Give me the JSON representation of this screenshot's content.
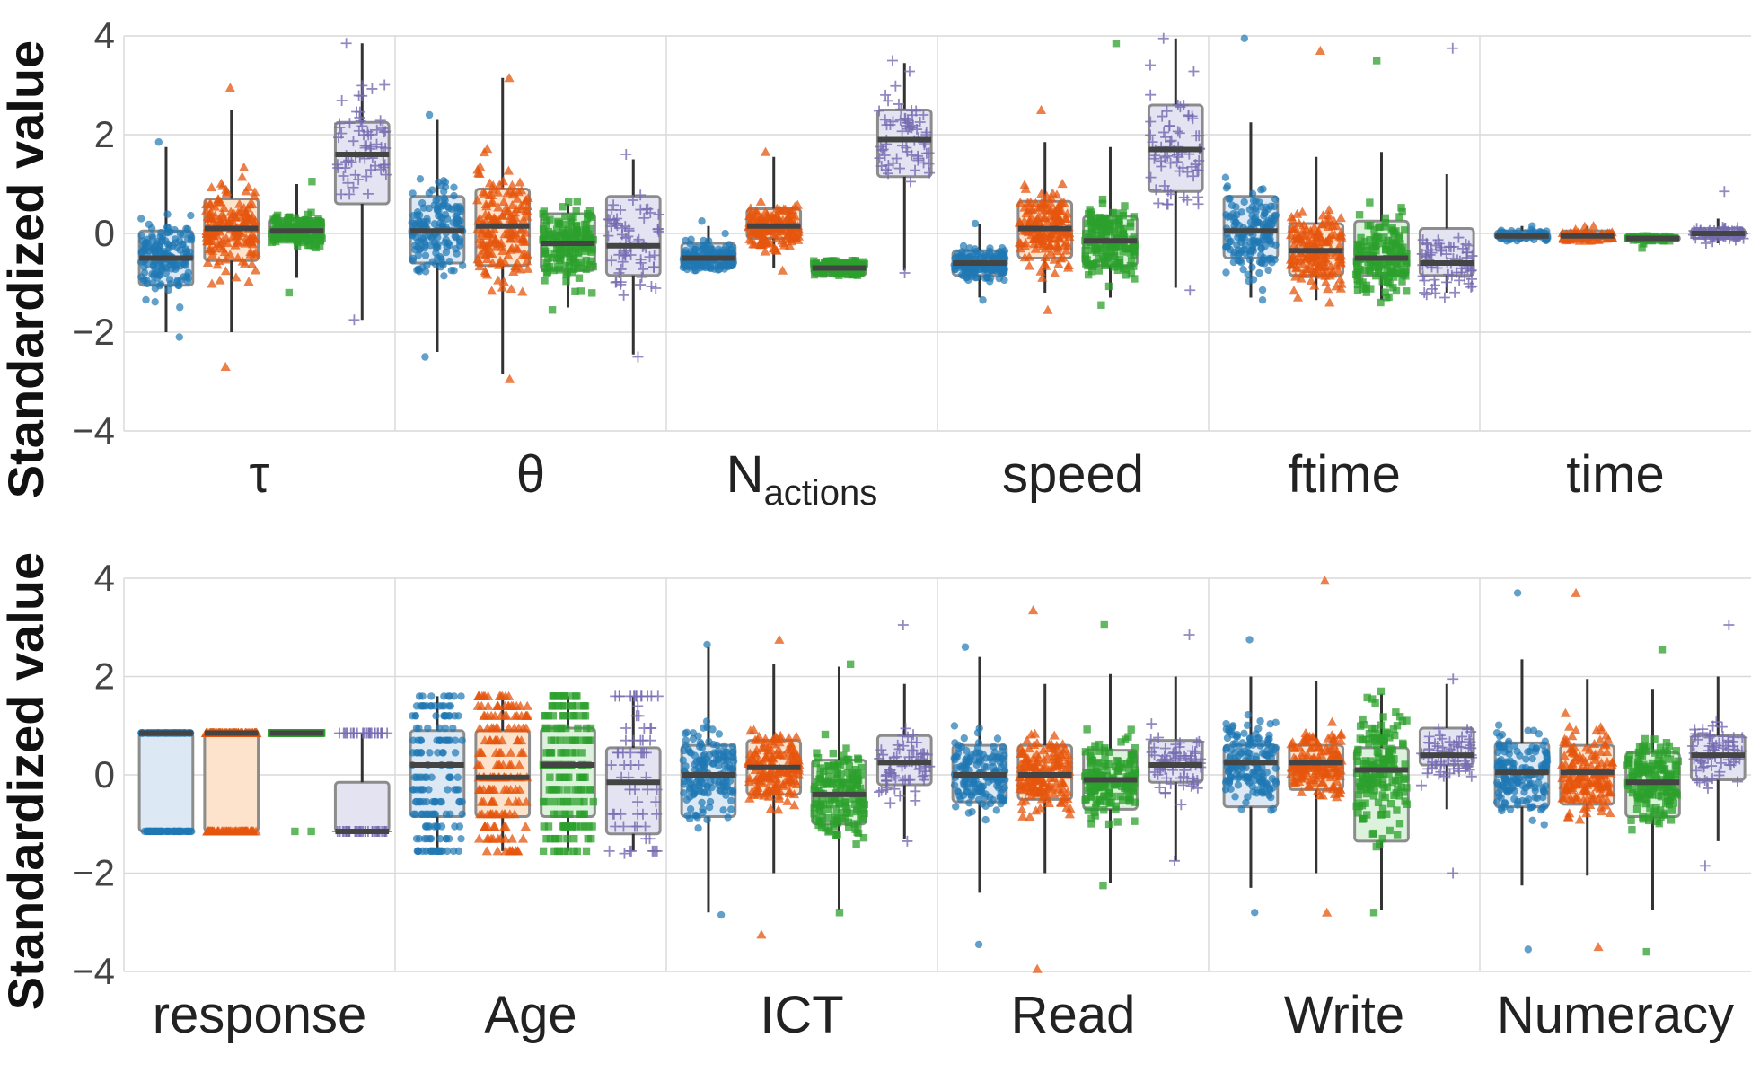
{
  "chart_data": [
    {
      "type": "box",
      "ylabel": "Standardized value",
      "ylim": [
        -4,
        4
      ],
      "yticks": [
        "−4",
        "−2",
        "0",
        "2",
        "4"
      ],
      "ytick_values": [
        -4,
        -2,
        0,
        2,
        4
      ],
      "grid": true,
      "categories": [
        {
          "main": "τ",
          "sub": ""
        },
        {
          "main": "θ",
          "sub": ""
        },
        {
          "main": "N",
          "sub": "actions"
        },
        {
          "main": "speed",
          "sub": ""
        },
        {
          "main": "ftime",
          "sub": ""
        },
        {
          "main": "time",
          "sub": ""
        }
      ],
      "groups": [
        [
          {
            "q1": -1.05,
            "median": -0.5,
            "q3": 0.05,
            "wlo": -2.0,
            "whi": 1.75,
            "lo": -2.1,
            "hi": 1.85
          },
          {
            "q1": -0.55,
            "median": 0.1,
            "q3": 0.7,
            "wlo": -2.0,
            "whi": 2.5,
            "lo": -2.7,
            "hi": 2.95
          },
          {
            "q1": -0.15,
            "median": 0.05,
            "q3": 0.3,
            "wlo": -0.9,
            "whi": 1.0,
            "lo": -1.2,
            "hi": 1.05
          },
          {
            "q1": 0.6,
            "median": 1.6,
            "q3": 2.25,
            "wlo": -1.75,
            "whi": 3.85,
            "lo": -1.75,
            "hi": 3.85
          }
        ],
        [
          {
            "q1": -0.6,
            "median": 0.05,
            "q3": 0.75,
            "wlo": -2.4,
            "whi": 2.3,
            "lo": -2.5,
            "hi": 2.4
          },
          {
            "q1": -0.65,
            "median": 0.15,
            "q3": 0.9,
            "wlo": -2.85,
            "whi": 3.15,
            "lo": -2.95,
            "hi": 3.15
          },
          {
            "q1": -0.75,
            "median": -0.2,
            "q3": 0.4,
            "wlo": -1.5,
            "whi": 0.6,
            "lo": -1.55,
            "hi": 0.65
          },
          {
            "q1": -0.85,
            "median": -0.25,
            "q3": 0.75,
            "wlo": -2.45,
            "whi": 1.5,
            "lo": -2.5,
            "hi": 1.6
          }
        ],
        [
          {
            "q1": -0.7,
            "median": -0.5,
            "q3": -0.2,
            "wlo": -0.75,
            "whi": 0.15,
            "lo": -0.75,
            "hi": 0.25
          },
          {
            "q1": -0.1,
            "median": 0.15,
            "q3": 0.5,
            "wlo": -0.7,
            "whi": 1.55,
            "lo": -0.75,
            "hi": 1.65
          },
          {
            "q1": -0.85,
            "median": -0.7,
            "q3": -0.6,
            "wlo": -0.85,
            "whi": -0.55,
            "lo": -0.85,
            "hi": -0.55
          },
          {
            "q1": 1.15,
            "median": 1.9,
            "q3": 2.5,
            "wlo": -0.75,
            "whi": 3.45,
            "lo": -0.8,
            "hi": 3.5
          }
        ],
        [
          {
            "q1": -0.85,
            "median": -0.6,
            "q3": -0.35,
            "wlo": -1.3,
            "whi": 0.2,
            "lo": -1.35,
            "hi": 0.2
          },
          {
            "q1": -0.5,
            "median": 0.1,
            "q3": 0.65,
            "wlo": -1.2,
            "whi": 1.85,
            "lo": -1.55,
            "hi": 2.5
          },
          {
            "q1": -0.65,
            "median": -0.15,
            "q3": 0.35,
            "wlo": -1.3,
            "whi": 1.75,
            "lo": -1.45,
            "hi": 3.85
          },
          {
            "q1": 0.85,
            "median": 1.7,
            "q3": 2.6,
            "wlo": -1.1,
            "whi": 3.95,
            "lo": -1.15,
            "hi": 3.95
          }
        ],
        [
          {
            "q1": -0.5,
            "median": 0.05,
            "q3": 0.75,
            "wlo": -1.3,
            "whi": 2.25,
            "lo": -1.35,
            "hi": 3.95
          },
          {
            "q1": -0.85,
            "median": -0.35,
            "q3": 0.2,
            "wlo": -1.35,
            "whi": 1.55,
            "lo": -1.4,
            "hi": 3.7
          },
          {
            "q1": -0.85,
            "median": -0.5,
            "q3": 0.25,
            "wlo": -1.35,
            "whi": 1.65,
            "lo": -1.4,
            "hi": 3.5
          },
          {
            "q1": -0.85,
            "median": -0.6,
            "q3": 0.1,
            "wlo": -1.2,
            "whi": 1.2,
            "lo": -1.3,
            "hi": 3.75
          }
        ],
        [
          {
            "q1": -0.1,
            "median": -0.05,
            "q3": 0.05,
            "wlo": -0.15,
            "whi": 0.15,
            "lo": -0.15,
            "hi": 0.15
          },
          {
            "q1": -0.1,
            "median": -0.05,
            "q3": 0.05,
            "wlo": -0.15,
            "whi": 0.15,
            "lo": -0.15,
            "hi": 0.15
          },
          {
            "q1": -0.15,
            "median": -0.1,
            "q3": -0.05,
            "wlo": -0.15,
            "whi": -0.05,
            "lo": -0.15,
            "hi": -0.05
          },
          {
            "q1": -0.1,
            "median": 0.0,
            "q3": 0.1,
            "wlo": -0.2,
            "whi": 0.3,
            "lo": -0.2,
            "hi": 0.85
          }
        ]
      ]
    },
    {
      "type": "box",
      "ylabel": "Standardized value",
      "ylim": [
        -4,
        4
      ],
      "yticks": [
        "−4",
        "−2",
        "0",
        "2",
        "4"
      ],
      "ytick_values": [
        -4,
        -2,
        0,
        2,
        4
      ],
      "grid": true,
      "categories": [
        {
          "main": "response",
          "sub": ""
        },
        {
          "main": "Age",
          "sub": ""
        },
        {
          "main": "ICT",
          "sub": ""
        },
        {
          "main": "Read",
          "sub": ""
        },
        {
          "main": "Write",
          "sub": ""
        },
        {
          "main": "Numeracy",
          "sub": ""
        }
      ],
      "groups": [
        [
          {
            "q1": -1.15,
            "median": 0.85,
            "q3": 0.85,
            "wlo": -1.15,
            "whi": 0.85,
            "lo": -1.15,
            "hi": 0.85,
            "discrete": [
              -1.15,
              0.85
            ]
          },
          {
            "q1": -1.15,
            "median": 0.85,
            "q3": 0.85,
            "wlo": -1.15,
            "whi": 0.85,
            "lo": -1.15,
            "hi": 0.85,
            "discrete": [
              -1.15,
              0.85
            ]
          },
          {
            "q1": 0.85,
            "median": 0.85,
            "q3": 0.85,
            "wlo": 0.85,
            "whi": 0.85,
            "lo": -1.15,
            "hi": 0.85,
            "discrete": [
              -1.15,
              0.85
            ]
          },
          {
            "q1": -1.15,
            "median": -1.15,
            "q3": -0.15,
            "wlo": -1.15,
            "whi": 0.85,
            "lo": -1.15,
            "hi": 0.85,
            "discrete": [
              -1.15,
              0.85
            ]
          }
        ],
        [
          {
            "q1": -0.85,
            "median": 0.2,
            "q3": 0.9,
            "wlo": -1.55,
            "whi": 1.6,
            "lo": -1.55,
            "hi": 1.6,
            "discrete": [
              -1.55,
              -1.3,
              -1.05,
              -0.8,
              -0.55,
              -0.3,
              -0.05,
              0.2,
              0.45,
              0.7,
              0.95,
              1.2,
              1.4,
              1.6
            ]
          },
          {
            "q1": -0.85,
            "median": -0.05,
            "q3": 0.9,
            "wlo": -1.55,
            "whi": 1.6,
            "lo": -1.55,
            "hi": 1.6,
            "discrete": [
              -1.55,
              -1.3,
              -1.05,
              -0.8,
              -0.55,
              -0.3,
              -0.05,
              0.2,
              0.45,
              0.7,
              0.95,
              1.2,
              1.4,
              1.6
            ]
          },
          {
            "q1": -0.85,
            "median": 0.2,
            "q3": 0.95,
            "wlo": -1.55,
            "whi": 1.6,
            "lo": -1.55,
            "hi": 1.6,
            "discrete": [
              -1.55,
              -1.3,
              -1.05,
              -0.8,
              -0.55,
              -0.3,
              -0.05,
              0.2,
              0.45,
              0.7,
              0.95,
              1.2,
              1.4,
              1.6
            ]
          },
          {
            "q1": -1.2,
            "median": -0.15,
            "q3": 0.55,
            "wlo": -1.55,
            "whi": 1.6,
            "lo": -1.6,
            "hi": 1.6,
            "discrete": [
              -1.55,
              -1.3,
              -1.05,
              -0.8,
              -0.55,
              -0.3,
              -0.05,
              0.2,
              0.45,
              0.7,
              0.95,
              1.2,
              1.4,
              1.6
            ]
          }
        ],
        [
          {
            "q1": -0.85,
            "median": 0.0,
            "q3": 0.6,
            "wlo": -2.8,
            "whi": 2.6,
            "lo": -2.85,
            "hi": 2.65
          },
          {
            "q1": -0.4,
            "median": 0.15,
            "q3": 0.7,
            "wlo": -2.0,
            "whi": 2.25,
            "lo": -3.25,
            "hi": 2.75
          },
          {
            "q1": -1.0,
            "median": -0.4,
            "q3": 0.3,
            "wlo": -2.75,
            "whi": 2.2,
            "lo": -2.8,
            "hi": 2.25
          },
          {
            "q1": -0.2,
            "median": 0.25,
            "q3": 0.8,
            "wlo": -1.3,
            "whi": 1.85,
            "lo": -1.35,
            "hi": 3.05
          }
        ],
        [
          {
            "q1": -0.55,
            "median": 0.0,
            "q3": 0.6,
            "wlo": -2.4,
            "whi": 2.4,
            "lo": -3.45,
            "hi": 2.6
          },
          {
            "q1": -0.5,
            "median": 0.0,
            "q3": 0.6,
            "wlo": -2.0,
            "whi": 1.85,
            "lo": -3.95,
            "hi": 3.35
          },
          {
            "q1": -0.7,
            "median": -0.1,
            "q3": 0.5,
            "wlo": -2.2,
            "whi": 2.05,
            "lo": -2.25,
            "hi": 3.05
          },
          {
            "q1": -0.15,
            "median": 0.2,
            "q3": 0.7,
            "wlo": -1.75,
            "whi": 2.0,
            "lo": -1.75,
            "hi": 2.85
          }
        ],
        [
          {
            "q1": -0.65,
            "median": 0.25,
            "q3": 0.6,
            "wlo": -2.3,
            "whi": 2.0,
            "lo": -2.8,
            "hi": 2.75
          },
          {
            "q1": -0.3,
            "median": 0.25,
            "q3": 0.6,
            "wlo": -2.0,
            "whi": 1.9,
            "lo": -2.8,
            "hi": 3.95
          },
          {
            "q1": -1.35,
            "median": 0.1,
            "q3": 0.55,
            "wlo": -2.75,
            "whi": 1.65,
            "lo": -2.8,
            "hi": 1.7
          },
          {
            "q1": 0.2,
            "median": 0.4,
            "q3": 0.95,
            "wlo": -0.7,
            "whi": 1.85,
            "lo": -2.0,
            "hi": 1.95
          }
        ],
        [
          {
            "q1": -0.65,
            "median": 0.05,
            "q3": 0.65,
            "wlo": -2.25,
            "whi": 2.35,
            "lo": -3.55,
            "hi": 3.7
          },
          {
            "q1": -0.6,
            "median": 0.05,
            "q3": 0.6,
            "wlo": -2.05,
            "whi": 1.95,
            "lo": -3.5,
            "hi": 3.7
          },
          {
            "q1": -0.85,
            "median": -0.15,
            "q3": 0.45,
            "wlo": -2.75,
            "whi": 1.75,
            "lo": -3.6,
            "hi": 2.55
          },
          {
            "q1": -0.1,
            "median": 0.4,
            "q3": 0.8,
            "wlo": -1.35,
            "whi": 2.0,
            "lo": -1.85,
            "hi": 3.05
          }
        ]
      ]
    }
  ],
  "series_styles": [
    {
      "color": "#1f77b4",
      "box_fill": "#dce9f5",
      "marker": "circle"
    },
    {
      "color": "#e6550d",
      "box_fill": "#fde3cc",
      "marker": "triangle"
    },
    {
      "color": "#2ca02c",
      "box_fill": "#dcf2dc",
      "marker": "square"
    },
    {
      "color": "#756bb1",
      "box_fill": "#e4e3f2",
      "marker": "plus"
    }
  ],
  "colors": {
    "grid": "#d9d9d9",
    "whisker": "#333333",
    "box_edge": "#8c8c8c",
    "median": "#444444"
  }
}
